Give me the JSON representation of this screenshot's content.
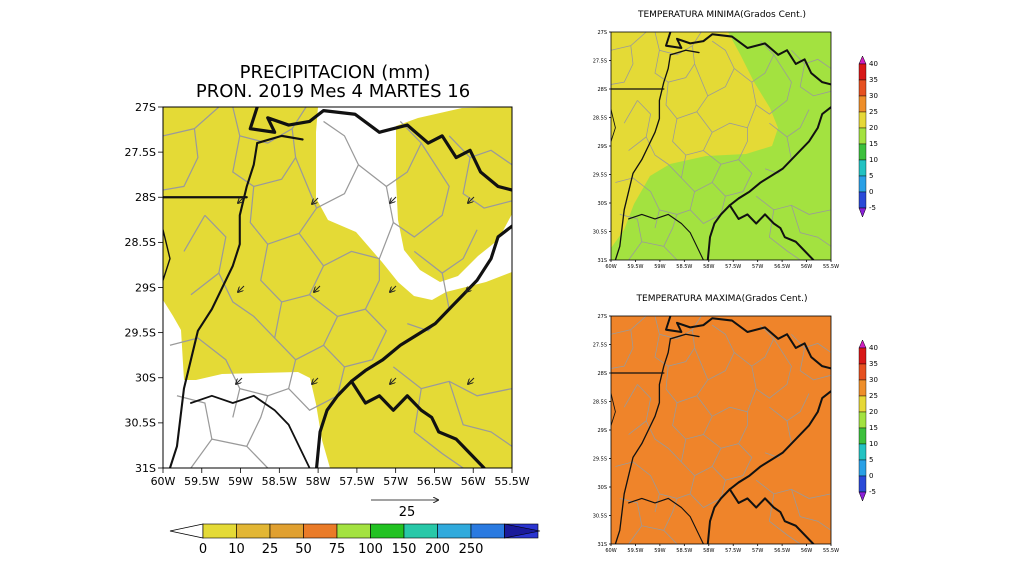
{
  "main_map": {
    "title_line1": "PRECIPITACION (mm)",
    "title_line2": "PRON. 2019 Mes 4 MARTES 16",
    "lat_labels": [
      "27S",
      "27.5S",
      "28S",
      "28.5S",
      "29S",
      "29.5S",
      "30S",
      "30.5S",
      "31S"
    ],
    "lon_labels": [
      "60W",
      "59.5W",
      "59W",
      "58.5W",
      "58W",
      "57.5W",
      "57W",
      "56.5W",
      "56W",
      "55.5W"
    ],
    "wind_vector_label": "25",
    "colorbar_labels": [
      "0",
      "10",
      "25",
      "50",
      "75",
      "100",
      "150",
      "200",
      "250"
    ],
    "colors": {
      "rain_fill": "#e4da36",
      "colorbar": [
        "#e4da36",
        "#e2b634",
        "#e0a030",
        "#ea7b28",
        "#a3e240",
        "#22c222",
        "#28c8a8",
        "#30aadc",
        "#2a7ae0",
        "#2a34d0"
      ]
    }
  },
  "min_temp_map": {
    "title": "TEMPERATURA MINIMA(Grados Cent.)",
    "lat_labels": [
      "27S",
      "27.5S",
      "28S",
      "28.5S",
      "29S",
      "29.5S",
      "30S",
      "30.5S",
      "31S"
    ],
    "lon_labels": [
      "60W",
      "59.5W",
      "59W",
      "58.5W",
      "58W",
      "57.5W",
      "57W",
      "56.5W",
      "56W",
      "55.5W"
    ],
    "colorbar_labels": [
      "40",
      "35",
      "30",
      "25",
      "20",
      "15",
      "10",
      "5",
      "0",
      "-5"
    ]
  },
  "max_temp_map": {
    "title": "TEMPERATURA MAXIMA(Grados Cent.)",
    "lat_labels": [
      "27S",
      "27.5S",
      "28S",
      "28.5S",
      "29S",
      "29.5S",
      "30S",
      "30.5S",
      "31S"
    ],
    "lon_labels": [
      "60W",
      "59.5W",
      "59W",
      "58.5W",
      "58W",
      "57.5W",
      "57W",
      "56.5W",
      "56W",
      "55.5W"
    ],
    "colorbar_labels": [
      "40",
      "35",
      "30",
      "25",
      "20",
      "15",
      "10",
      "5",
      "0",
      "-5"
    ]
  },
  "temp_colors": {
    "scale": [
      "#d020c0",
      "#d81818",
      "#e65020",
      "#ee8e2a",
      "#e6d838",
      "#a3e240",
      "#3cc03c",
      "#22c2c2",
      "#2aa0e6",
      "#2a4ad8",
      "#8a20d8"
    ],
    "min_warm": "#e4da36",
    "min_cool": "#a3e240",
    "max_fill": "#ef842a"
  }
}
